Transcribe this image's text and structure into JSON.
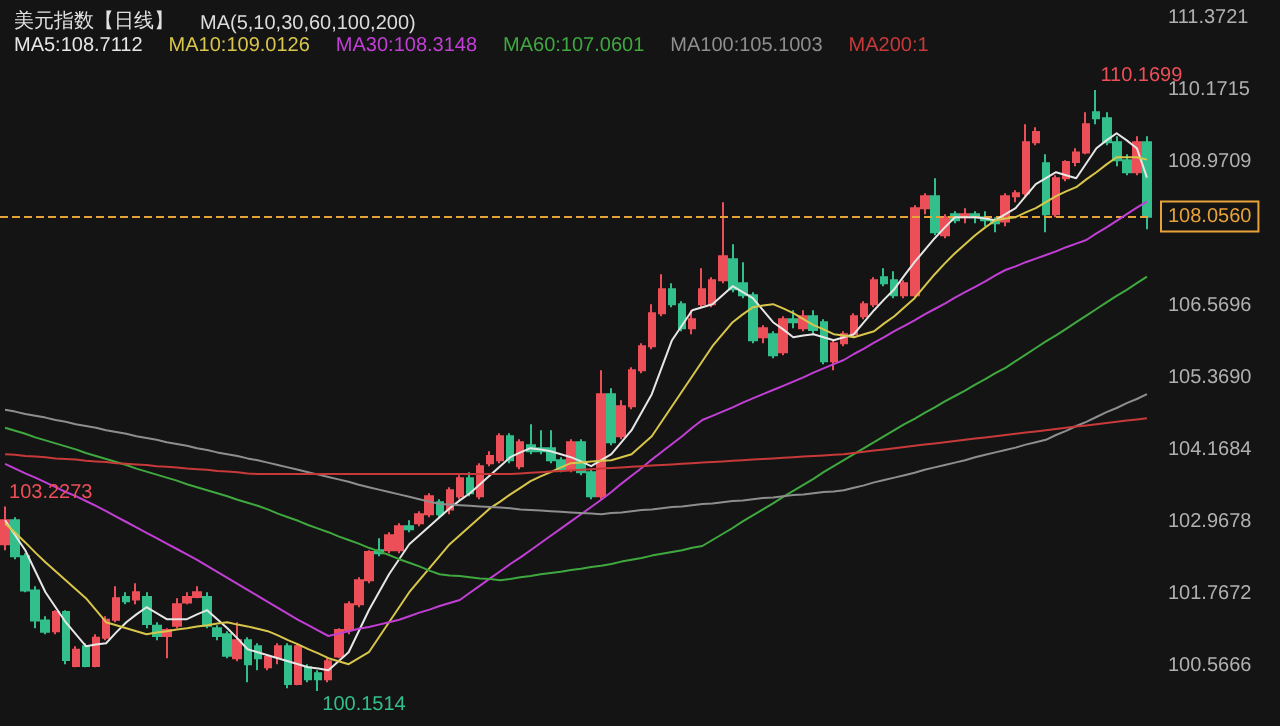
{
  "chart_data": {
    "type": "candlestick",
    "title": "美元指数【日线】",
    "subtitle": "MA(5,10,30,60,100,200)",
    "categories": [
      null,
      null,
      null,
      null,
      null,
      null,
      null,
      null,
      null,
      null,
      null,
      null,
      null,
      null,
      null,
      null,
      null,
      null,
      null,
      null,
      null,
      null,
      null,
      null,
      null,
      null,
      null,
      null,
      null,
      null,
      null,
      null,
      null,
      null,
      null,
      null,
      null,
      null,
      null,
      null,
      null,
      null,
      null,
      null,
      null,
      null,
      null,
      null,
      null,
      null,
      null,
      null,
      null,
      null,
      null,
      null,
      null,
      null,
      null,
      null,
      null,
      null,
      null,
      null,
      null,
      null,
      null,
      null,
      null,
      null,
      null,
      null,
      null,
      null,
      null,
      null,
      null,
      null,
      null,
      null,
      null,
      null,
      null,
      null,
      null,
      null,
      null,
      null,
      null,
      null,
      null,
      null,
      null,
      null,
      null,
      null,
      null,
      null,
      null,
      null,
      null,
      null,
      null,
      null,
      null,
      null,
      null,
      null,
      null,
      null,
      null,
      null,
      null,
      null
    ],
    "ohlc": [
      [
        102.6,
        103.2273,
        102.5,
        103.0
      ],
      [
        103.0,
        103.05,
        102.35,
        102.4
      ],
      [
        102.4,
        102.45,
        101.8,
        101.83
      ],
      [
        101.83,
        101.9,
        101.2,
        101.33
      ],
      [
        101.33,
        101.4,
        101.1,
        101.14
      ],
      [
        101.15,
        101.5,
        101.1,
        101.47
      ],
      [
        101.47,
        101.5,
        100.6,
        100.67
      ],
      [
        100.57,
        100.9,
        100.55,
        100.84
      ],
      [
        100.9,
        100.95,
        100.55,
        100.57
      ],
      [
        100.57,
        101.1,
        100.55,
        101.04
      ],
      [
        101.04,
        101.4,
        101.0,
        101.34
      ],
      [
        101.34,
        101.9,
        101.3,
        101.7
      ],
      [
        101.72,
        101.8,
        101.6,
        101.65
      ],
      [
        101.68,
        101.95,
        101.6,
        101.8
      ],
      [
        101.72,
        101.8,
        101.2,
        101.27
      ],
      [
        101.24,
        101.3,
        101.0,
        101.07
      ],
      [
        101.07,
        101.2,
        100.7,
        101.17
      ],
      [
        101.24,
        101.7,
        101.2,
        101.6
      ],
      [
        101.63,
        101.8,
        101.6,
        101.72
      ],
      [
        101.72,
        101.9,
        101.7,
        101.8
      ],
      [
        101.72,
        101.8,
        101.2,
        101.24
      ],
      [
        101.2,
        101.25,
        101.0,
        101.07
      ],
      [
        101.1,
        101.15,
        100.7,
        100.74
      ],
      [
        100.7,
        101.3,
        100.65,
        101.0
      ],
      [
        101.0,
        101.05,
        100.3,
        100.6
      ],
      [
        100.9,
        100.95,
        100.5,
        100.7
      ],
      [
        100.55,
        100.75,
        100.5,
        100.72
      ],
      [
        100.72,
        100.95,
        100.6,
        100.9
      ],
      [
        100.9,
        100.95,
        100.2,
        100.27
      ],
      [
        100.27,
        100.95,
        100.25,
        100.9
      ],
      [
        100.55,
        100.6,
        100.3,
        100.35
      ],
      [
        100.45,
        100.5,
        100.1514,
        100.35
      ],
      [
        100.35,
        100.7,
        100.3,
        100.65
      ],
      [
        100.73,
        101.2,
        100.7,
        101.17
      ],
      [
        101.17,
        101.65,
        101.1,
        101.6
      ],
      [
        101.6,
        102.05,
        101.55,
        102.0
      ],
      [
        102.0,
        102.5,
        101.95,
        102.47
      ],
      [
        102.5,
        102.7,
        102.4,
        102.45
      ],
      [
        102.5,
        102.8,
        102.45,
        102.75
      ],
      [
        102.5,
        102.95,
        102.45,
        102.9
      ],
      [
        102.9,
        103.0,
        102.8,
        102.85
      ],
      [
        102.95,
        103.15,
        102.9,
        103.1
      ],
      [
        103.1,
        103.45,
        103.05,
        103.4
      ],
      [
        103.3,
        103.35,
        103.05,
        103.1
      ],
      [
        103.18,
        103.55,
        103.1,
        103.5
      ],
      [
        103.4,
        103.75,
        103.35,
        103.7
      ],
      [
        103.7,
        103.8,
        103.4,
        103.45
      ],
      [
        103.4,
        103.95,
        103.35,
        103.9
      ],
      [
        103.95,
        104.15,
        103.9,
        104.07
      ],
      [
        104.0,
        104.45,
        103.95,
        104.4
      ],
      [
        104.4,
        104.45,
        103.95,
        104.0
      ],
      [
        103.9,
        104.35,
        103.85,
        104.3
      ],
      [
        104.25,
        104.6,
        104.1,
        104.15
      ],
      [
        104.2,
        104.5,
        104.1,
        104.15
      ],
      [
        104.2,
        104.5,
        103.95,
        104.0
      ],
      [
        104.0,
        104.05,
        103.8,
        103.85
      ],
      [
        103.85,
        104.35,
        103.8,
        104.3
      ],
      [
        104.3,
        104.35,
        103.75,
        103.8
      ],
      [
        103.8,
        103.85,
        103.35,
        103.4
      ],
      [
        103.4,
        105.5,
        103.35,
        105.1
      ],
      [
        105.1,
        105.2,
        104.25,
        104.3
      ],
      [
        104.4,
        105.0,
        104.35,
        104.9
      ],
      [
        104.9,
        105.55,
        104.85,
        105.5
      ],
      [
        105.5,
        105.95,
        105.45,
        105.9
      ],
      [
        105.9,
        106.6,
        105.85,
        106.45
      ],
      [
        106.45,
        107.1,
        106.4,
        106.85
      ],
      [
        106.85,
        106.95,
        106.55,
        106.6
      ],
      [
        106.6,
        106.65,
        106.15,
        106.2
      ],
      [
        106.2,
        106.5,
        106.1,
        106.35
      ],
      [
        106.6,
        107.2,
        106.55,
        106.85
      ],
      [
        106.6,
        107.05,
        106.55,
        107.0
      ],
      [
        107.0,
        108.3,
        106.95,
        107.4
      ],
      [
        107.35,
        107.6,
        106.8,
        106.85
      ],
      [
        106.95,
        107.3,
        106.7,
        106.75
      ],
      [
        106.75,
        106.8,
        105.95,
        106.0
      ],
      [
        106.05,
        106.25,
        105.95,
        106.2
      ],
      [
        106.1,
        106.15,
        105.7,
        105.75
      ],
      [
        105.8,
        106.4,
        105.75,
        106.35
      ],
      [
        106.35,
        106.5,
        106.2,
        106.3
      ],
      [
        106.2,
        106.5,
        106.15,
        106.4
      ],
      [
        106.4,
        106.5,
        106.1,
        106.17
      ],
      [
        106.3,
        106.35,
        105.6,
        105.65
      ],
      [
        105.65,
        106.0,
        105.5,
        105.95
      ],
      [
        105.95,
        106.15,
        105.9,
        106.1
      ],
      [
        106.1,
        106.45,
        106.05,
        106.4
      ],
      [
        106.4,
        106.65,
        106.35,
        106.6
      ],
      [
        106.6,
        107.05,
        106.55,
        107.0
      ],
      [
        107.05,
        107.2,
        106.9,
        106.95
      ],
      [
        107.0,
        107.15,
        106.7,
        106.75
      ],
      [
        106.75,
        107.0,
        106.7,
        106.95
      ],
      [
        106.75,
        108.25,
        106.7,
        108.2
      ],
      [
        108.2,
        108.45,
        108.1,
        108.4
      ],
      [
        108.4,
        108.7,
        107.75,
        107.8
      ],
      [
        107.75,
        108.1,
        107.7,
        108.05
      ],
      [
        108.1,
        108.15,
        107.95,
        108.0
      ],
      [
        108.05,
        108.2,
        107.95,
        108.1
      ],
      [
        108.1,
        108.15,
        107.95,
        108.05
      ],
      [
        108.05,
        108.15,
        107.9,
        108.0
      ],
      [
        108.0,
        108.05,
        107.8,
        107.95
      ],
      [
        107.98,
        108.45,
        107.9,
        108.4
      ],
      [
        108.4,
        108.5,
        108.3,
        108.45
      ],
      [
        108.45,
        109.6,
        108.4,
        109.3
      ],
      [
        109.3,
        109.55,
        109.25,
        109.47
      ],
      [
        108.95,
        109.1,
        107.8,
        108.1
      ],
      [
        108.1,
        108.75,
        108.05,
        108.7
      ],
      [
        108.7,
        109.0,
        108.65,
        108.97
      ],
      [
        108.97,
        109.2,
        108.9,
        109.13
      ],
      [
        109.13,
        109.8,
        109.1,
        109.6
      ],
      [
        109.8,
        110.1699,
        109.6,
        109.7
      ],
      [
        109.7,
        109.8,
        109.25,
        109.3
      ],
      [
        109.3,
        109.4,
        108.9,
        109.0
      ],
      [
        109.0,
        109.1,
        108.75,
        108.8
      ],
      [
        108.8,
        109.4,
        108.75,
        109.3
      ],
      [
        109.3,
        109.4,
        107.85,
        108.056
      ]
    ],
    "series": [
      {
        "type": "line",
        "name": "MA5:108.7112",
        "color": "#e6e6e6",
        "values": [
          103.0,
          102.75,
          102.5,
          102.15,
          101.8,
          101.55,
          101.3,
          101.1,
          100.9,
          100.93,
          100.95,
          101.13,
          101.3,
          101.43,
          101.55,
          101.45,
          101.35,
          101.35,
          101.35,
          101.43,
          101.5,
          101.35,
          101.2,
          101.03,
          100.85,
          100.8,
          100.75,
          100.7,
          100.65,
          100.6,
          100.55,
          100.53,
          100.5,
          100.65,
          100.8,
          101.15,
          101.5,
          101.8,
          102.1,
          102.35,
          102.6,
          102.75,
          102.9,
          103.05,
          103.2,
          103.33,
          103.45,
          103.6,
          103.75,
          103.9,
          104.05,
          104.13,
          104.2,
          104.18,
          104.15,
          104.1,
          104.05,
          103.98,
          103.9,
          104.0,
          104.1,
          104.3,
          104.5,
          104.8,
          105.1,
          105.55,
          106.0,
          106.25,
          106.5,
          106.55,
          106.6,
          106.75,
          106.9,
          106.8,
          106.7,
          106.5,
          106.3,
          106.18,
          106.05,
          106.08,
          106.1,
          106.05,
          106.0,
          106.05,
          106.1,
          106.3,
          106.5,
          106.68,
          106.85,
          107.08,
          107.3,
          107.5,
          107.7,
          107.88,
          108.05,
          108.05,
          108.05,
          108.03,
          108.0,
          108.1,
          108.2,
          108.4,
          108.6,
          108.7,
          108.8,
          108.75,
          108.7,
          108.95,
          109.2,
          109.33,
          109.45,
          109.33,
          109.2,
          108.71
        ]
      },
      {
        "type": "line",
        "name": "MA10:109.0126",
        "color": "#d8c64a",
        "values": [
          102.95,
          102.79,
          102.63,
          102.46,
          102.3,
          102.15,
          102.0,
          101.85,
          101.7,
          101.5,
          101.3,
          101.25,
          101.2,
          101.15,
          101.1,
          101.13,
          101.15,
          101.18,
          101.2,
          101.23,
          101.25,
          101.28,
          101.3,
          101.26,
          101.23,
          101.19,
          101.15,
          101.08,
          101.0,
          100.93,
          100.85,
          100.78,
          100.7,
          100.65,
          100.6,
          100.7,
          100.8,
          101.05,
          101.3,
          101.55,
          101.8,
          102.0,
          102.2,
          102.4,
          102.6,
          102.75,
          102.9,
          103.05,
          103.2,
          103.31,
          103.43,
          103.54,
          103.65,
          103.73,
          103.8,
          103.88,
          103.95,
          103.96,
          103.98,
          103.99,
          104.0,
          104.05,
          104.1,
          104.25,
          104.4,
          104.65,
          104.9,
          105.15,
          105.4,
          105.65,
          105.9,
          106.1,
          106.3,
          106.43,
          106.55,
          106.58,
          106.6,
          106.53,
          106.45,
          106.35,
          106.25,
          106.18,
          106.1,
          106.08,
          106.05,
          106.1,
          106.15,
          106.28,
          106.4,
          106.55,
          106.7,
          106.9,
          107.1,
          107.28,
          107.45,
          107.6,
          107.75,
          107.88,
          108.0,
          108.03,
          108.05,
          108.13,
          108.2,
          108.3,
          108.4,
          108.48,
          108.55,
          108.68,
          108.8,
          108.93,
          109.05,
          109.05,
          109.05,
          109.01
        ]
      },
      {
        "type": "line",
        "name": "MA30:108.3148",
        "color": "#c23fd6",
        "values": [
          103.94,
          103.86,
          103.78,
          103.71,
          103.63,
          103.55,
          103.47,
          103.4,
          103.32,
          103.24,
          103.15,
          103.06,
          102.97,
          102.88,
          102.79,
          102.7,
          102.61,
          102.52,
          102.43,
          102.34,
          102.24,
          102.14,
          102.04,
          101.94,
          101.84,
          101.74,
          101.64,
          101.54,
          101.44,
          101.34,
          101.25,
          101.16,
          101.07,
          101.11,
          101.15,
          101.19,
          101.22,
          101.26,
          101.3,
          101.34,
          101.4,
          101.46,
          101.51,
          101.57,
          101.62,
          101.67,
          101.79,
          101.91,
          102.03,
          102.15,
          102.27,
          102.38,
          102.5,
          102.62,
          102.74,
          102.86,
          102.98,
          103.1,
          103.22,
          103.34,
          103.47,
          103.61,
          103.74,
          103.87,
          104.01,
          104.14,
          104.27,
          104.4,
          104.54,
          104.67,
          104.74,
          104.81,
          104.88,
          104.96,
          105.03,
          105.1,
          105.17,
          105.24,
          105.31,
          105.38,
          105.46,
          105.53,
          105.6,
          105.67,
          105.77,
          105.86,
          105.96,
          106.05,
          106.15,
          106.24,
          106.33,
          106.43,
          106.52,
          106.61,
          106.71,
          106.8,
          106.89,
          106.98,
          107.08,
          107.17,
          107.23,
          107.3,
          107.36,
          107.42,
          107.48,
          107.55,
          107.61,
          107.67,
          107.78,
          107.88,
          107.99,
          108.1,
          108.21,
          108.31
        ]
      },
      {
        "type": "line",
        "name": "MA60:107.0601",
        "color": "#3fa83f",
        "values": [
          104.54,
          104.49,
          104.44,
          104.38,
          104.33,
          104.28,
          104.23,
          104.18,
          104.12,
          104.07,
          104.02,
          103.97,
          103.92,
          103.86,
          103.81,
          103.76,
          103.71,
          103.66,
          103.6,
          103.55,
          103.5,
          103.45,
          103.4,
          103.34,
          103.29,
          103.24,
          103.18,
          103.11,
          103.05,
          102.99,
          102.92,
          102.86,
          102.8,
          102.73,
          102.67,
          102.61,
          102.54,
          102.48,
          102.42,
          102.35,
          102.29,
          102.23,
          102.16,
          102.1,
          102.08,
          102.07,
          102.05,
          102.03,
          102.02,
          102.0,
          102.02,
          102.05,
          102.07,
          102.1,
          102.12,
          102.14,
          102.17,
          102.19,
          102.22,
          102.24,
          102.27,
          102.31,
          102.34,
          102.37,
          102.41,
          102.44,
          102.47,
          102.5,
          102.54,
          102.57,
          102.67,
          102.77,
          102.87,
          102.98,
          103.08,
          103.18,
          103.28,
          103.39,
          103.49,
          103.59,
          103.69,
          103.8,
          103.9,
          104.0,
          104.1,
          104.2,
          104.3,
          104.4,
          104.5,
          104.6,
          104.69,
          104.79,
          104.88,
          104.98,
          105.07,
          105.16,
          105.26,
          105.35,
          105.45,
          105.54,
          105.65,
          105.76,
          105.87,
          105.98,
          106.08,
          106.19,
          106.3,
          106.41,
          106.52,
          106.63,
          106.74,
          106.84,
          106.95,
          107.06
        ]
      },
      {
        "type": "line",
        "name": "MA100:105.1003",
        "color": "#8e8e8e",
        "values": [
          104.84,
          104.81,
          104.77,
          104.74,
          104.71,
          104.67,
          104.64,
          104.6,
          104.57,
          104.54,
          104.5,
          104.47,
          104.44,
          104.4,
          104.37,
          104.34,
          104.3,
          104.27,
          104.24,
          104.2,
          104.17,
          104.13,
          104.1,
          104.07,
          104.03,
          104.0,
          103.96,
          103.92,
          103.88,
          103.84,
          103.8,
          103.76,
          103.72,
          103.68,
          103.64,
          103.59,
          103.55,
          103.51,
          103.47,
          103.43,
          103.39,
          103.35,
          103.31,
          103.27,
          103.26,
          103.25,
          103.24,
          103.23,
          103.22,
          103.21,
          103.2,
          103.18,
          103.17,
          103.16,
          103.15,
          103.14,
          103.13,
          103.12,
          103.11,
          103.1,
          103.12,
          103.13,
          103.15,
          103.17,
          103.18,
          103.2,
          103.22,
          103.23,
          103.25,
          103.27,
          103.28,
          103.3,
          103.32,
          103.33,
          103.35,
          103.37,
          103.38,
          103.4,
          103.42,
          103.43,
          103.45,
          103.47,
          103.48,
          103.5,
          103.54,
          103.58,
          103.63,
          103.67,
          103.71,
          103.75,
          103.79,
          103.84,
          103.88,
          103.92,
          103.96,
          104.0,
          104.05,
          104.09,
          104.13,
          104.17,
          104.21,
          104.26,
          104.3,
          104.34,
          104.42,
          104.49,
          104.57,
          104.64,
          104.72,
          104.8,
          104.87,
          104.95,
          105.02,
          105.1
        ]
      },
      {
        "type": "line",
        "name": "MA200:1",
        "color": "#c83a3a",
        "values": [
          104.1,
          104.09,
          104.07,
          104.06,
          104.05,
          104.03,
          104.02,
          104.01,
          103.99,
          103.98,
          103.97,
          103.95,
          103.94,
          103.93,
          103.92,
          103.9,
          103.89,
          103.88,
          103.86,
          103.85,
          103.84,
          103.82,
          103.81,
          103.8,
          103.78,
          103.77,
          103.77,
          103.77,
          103.77,
          103.77,
          103.77,
          103.77,
          103.77,
          103.77,
          103.77,
          103.77,
          103.77,
          103.77,
          103.77,
          103.77,
          103.77,
          103.77,
          103.77,
          103.77,
          103.77,
          103.77,
          103.77,
          103.77,
          103.77,
          103.77,
          103.77,
          103.78,
          103.79,
          103.8,
          103.81,
          103.82,
          103.83,
          103.84,
          103.85,
          103.86,
          103.87,
          103.88,
          103.89,
          103.9,
          103.91,
          103.92,
          103.93,
          103.94,
          103.95,
          103.96,
          103.97,
          103.98,
          103.99,
          104.0,
          104.01,
          104.02,
          104.03,
          104.04,
          104.05,
          104.06,
          104.07,
          104.08,
          104.09,
          104.1,
          104.12,
          104.14,
          104.16,
          104.18,
          104.2,
          104.22,
          104.24,
          104.26,
          104.28,
          104.3,
          104.32,
          104.34,
          104.36,
          104.38,
          104.4,
          104.42,
          104.44,
          104.46,
          104.48,
          104.5,
          104.52,
          104.54,
          104.56,
          104.58,
          104.6,
          104.62,
          104.64,
          104.66,
          104.68,
          104.7
        ]
      }
    ],
    "ylim": [
      99.57,
      111.67
    ],
    "yticks": [
      {
        "value": 100.5666,
        "label": "100.5666"
      },
      {
        "value": 101.7672,
        "label": "101.7672"
      },
      {
        "value": 102.9678,
        "label": "102.9678"
      },
      {
        "value": 104.1684,
        "label": "104.1684"
      },
      {
        "value": 105.369,
        "label": "105.3690"
      },
      {
        "value": 106.5696,
        "label": "106.5696"
      },
      {
        "value": 108.9709,
        "label": "108.9709"
      },
      {
        "value": 110.1715,
        "label": "110.1715"
      },
      {
        "value": 111.3721,
        "label": "111.3721"
      }
    ],
    "tick_labels": "y",
    "grid": false,
    "legend": "top left",
    "marker": "none",
    "ref_lines": [
      {
        "axis": "y",
        "value": 108.056,
        "label": "108.0560",
        "color": "#e8a23a",
        "line_style": "dashed"
      }
    ],
    "annotations": [
      "103.2273",
      "110.1699",
      "100.1514"
    ]
  }
}
